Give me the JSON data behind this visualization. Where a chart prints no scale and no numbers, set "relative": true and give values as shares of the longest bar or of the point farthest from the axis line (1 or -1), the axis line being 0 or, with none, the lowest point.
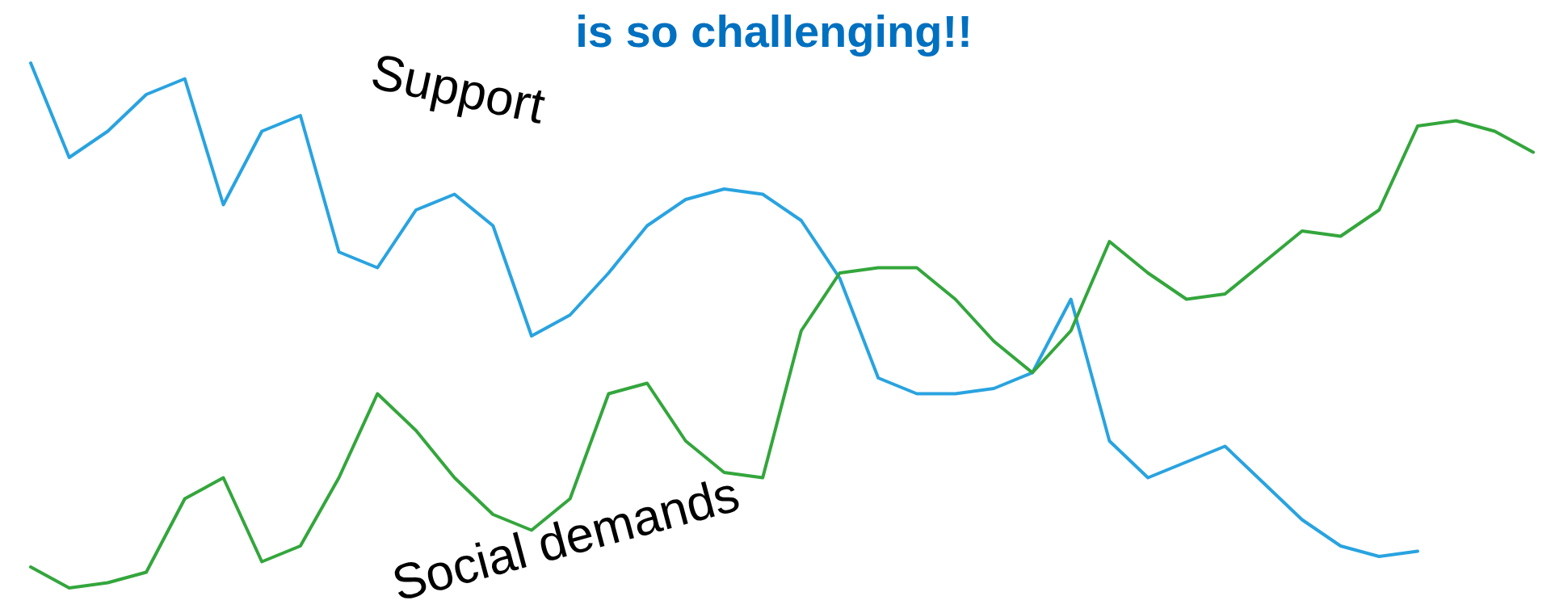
{
  "chart_data": {
    "type": "line",
    "title": "is so challenging!!",
    "relative": true,
    "marker": "none",
    "line_style": "solid",
    "categories": [
      null,
      null,
      null,
      null,
      null,
      null,
      null,
      null,
      null,
      null,
      null,
      null,
      null,
      null,
      null,
      null,
      null,
      null,
      null,
      null,
      null,
      null,
      null,
      null,
      null,
      null,
      null,
      null,
      null,
      null,
      null,
      null,
      null,
      null,
      null,
      null,
      null,
      null,
      null,
      null
    ],
    "series": [
      {
        "name": "Support",
        "color": "#29a3e0",
        "values": [
          1,
          0.82,
          0.87,
          0.94,
          0.97,
          0.73,
          0.87,
          0.9,
          0.64,
          0.61,
          0.72,
          0.75,
          0.69,
          0.48,
          0.52,
          0.6,
          0.69,
          0.74,
          0.76,
          0.75,
          0.7,
          0.59,
          0.4,
          0.37,
          0.37,
          0.38,
          0.41,
          0.55,
          0.28,
          0.21,
          0.24,
          0.27,
          0.2,
          0.13,
          0.08,
          0.06,
          0.07,
          null,
          null,
          null
        ]
      },
      {
        "name": "Social demands",
        "color": "#33a63c",
        "values": [
          0.04,
          0,
          0.01,
          0.03,
          0.17,
          0.21,
          0.05,
          0.08,
          0.21,
          0.37,
          0.3,
          0.21,
          0.14,
          0.11,
          0.17,
          0.37,
          0.39,
          0.28,
          0.22,
          0.21,
          0.49,
          0.6,
          0.61,
          0.61,
          0.55,
          0.47,
          0.41,
          0.49,
          0.66,
          0.6,
          0.55,
          0.56,
          0.62,
          0.68,
          0.67,
          0.72,
          0.88,
          0.89,
          0.87,
          0.83
        ]
      }
    ]
  }
}
